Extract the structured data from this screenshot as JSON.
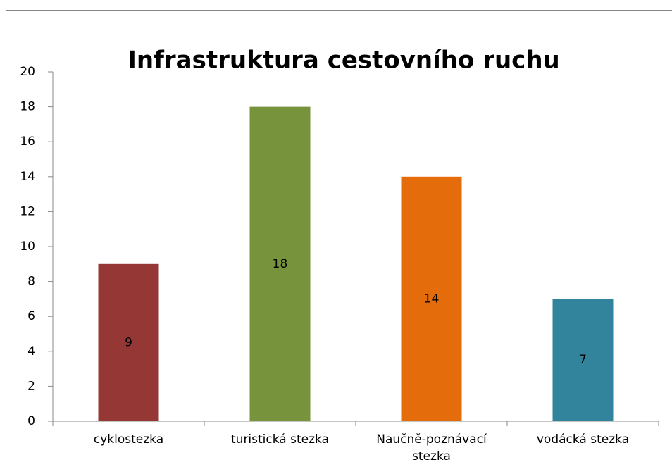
{
  "chart_data": {
    "type": "bar",
    "title": "Infrastruktura cestovního ruchu",
    "categories": [
      "cyklostezka",
      "turistická stezka",
      "Naučně-poznávací stezka",
      "vodácká stezka"
    ],
    "values": [
      9,
      18,
      14,
      7
    ],
    "colors": [
      "#953735",
      "#77933c",
      "#e46c0a",
      "#31849b"
    ],
    "ylim": [
      0,
      20
    ],
    "yticks": [
      0,
      2,
      4,
      6,
      8,
      10,
      12,
      14,
      16,
      18,
      20
    ],
    "grid": false
  }
}
